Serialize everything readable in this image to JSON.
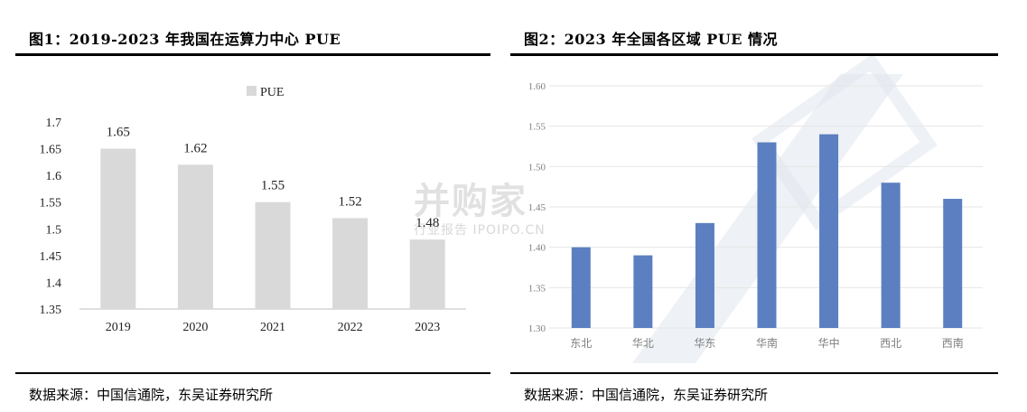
{
  "left": {
    "title": "图1：2019-2023 年我国在运算力中心 PUE",
    "source": "数据来源：中国信通院，东吴证券研究所"
  },
  "right": {
    "title": "图2：2023 年全国各区域 PUE 情况",
    "source": "数据来源：中国信通院，东吴证券研究所"
  },
  "watermark": {
    "main": "并购家",
    "sub": "行业报告 IPOIPO.CN"
  },
  "chart_data": [
    {
      "type": "bar",
      "categories": [
        "2019",
        "2020",
        "2021",
        "2022",
        "2023"
      ],
      "series": [
        {
          "name": "PUE",
          "values": [
            1.65,
            1.62,
            1.55,
            1.52,
            1.48
          ]
        }
      ],
      "data_labels": [
        "1.65",
        "1.62",
        "1.55",
        "1.52",
        "1.48"
      ],
      "ylim": [
        1.35,
        1.7
      ],
      "yticks": [
        "1.35",
        "1.4",
        "1.45",
        "1.5",
        "1.55",
        "1.6",
        "1.65",
        "1.7"
      ],
      "legend": "top-center",
      "grid": false,
      "color": "#d9d9d9"
    },
    {
      "type": "bar",
      "categories": [
        "东北",
        "华北",
        "华东",
        "华南",
        "华中",
        "西北",
        "西南"
      ],
      "values": [
        1.4,
        1.39,
        1.43,
        1.53,
        1.54,
        1.48,
        1.46
      ],
      "ylim": [
        1.3,
        1.6
      ],
      "yticks": [
        "1.30",
        "1.35",
        "1.40",
        "1.45",
        "1.50",
        "1.55",
        "1.60"
      ],
      "grid": true,
      "color": "#5b7fc0"
    }
  ]
}
